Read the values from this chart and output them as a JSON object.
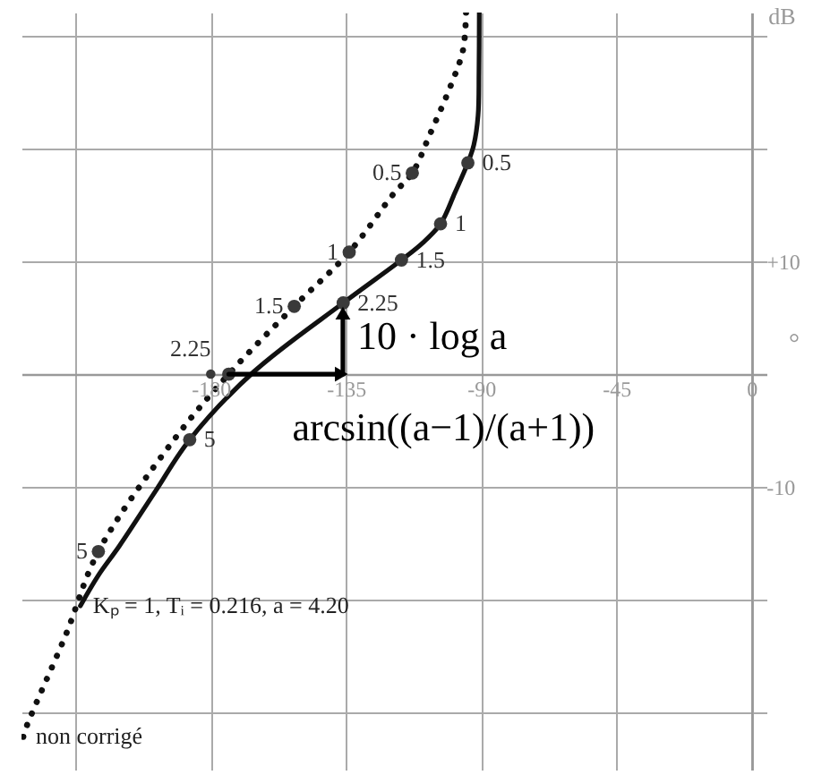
{
  "chart_data": {
    "type": "line",
    "xlabel": "°",
    "ylabel": "dB",
    "xlim": [
      -243,
      5
    ],
    "ylim": [
      -35,
      32
    ],
    "xticks": [
      {
        "value": -225,
        "label": null
      },
      -180,
      -135,
      -90,
      -45,
      0
    ],
    "yticks": [
      {
        "value": -30,
        "label": null
      },
      {
        "value": -20,
        "label": null
      },
      -10,
      {
        "value": 0,
        "label": null
      },
      {
        "value": 10,
        "label": "+10"
      },
      {
        "value": 20,
        "label": null
      },
      {
        "value": 30,
        "label": null
      }
    ],
    "grid": true,
    "series": [
      {
        "name": "Kₚ = 1, Tᵢ = 0.216, a = 4.20",
        "color": "#111111",
        "line_style": "solid",
        "x": [
          -90.6,
          -90.7,
          -91.0,
          -92.4,
          -94.4,
          -98.8,
          -103.5,
          -109.5,
          -116.5,
          -135.9,
          -165.7,
          -187.0,
          -198.5,
          -210.4,
          -217.4,
          -223.4
        ],
        "values": [
          32,
          26.8,
          22.9,
          20.3,
          18.7,
          16.0,
          13.3,
          11.6,
          10.1,
          6.3,
          0.2,
          -5.8,
          -10.4,
          -15.2,
          -17.8,
          -20.5
        ]
      },
      {
        "name": "non corrigé",
        "color": "#111111",
        "line_style": "dotted",
        "x": [
          -95.0,
          -96.0,
          -100.0,
          -106.9,
          -112.9,
          -119.0,
          -133.9,
          -152.2,
          -174.0,
          -192.5,
          -217.4,
          -228.3,
          -241.2,
          -242.4
        ],
        "values": [
          32,
          28.7,
          25.6,
          21.3,
          17.8,
          16.0,
          10.8,
          6.0,
          0,
          -5.9,
          -15.7,
          -23.1,
          -31.1,
          -32.1
        ]
      },
      {
        "type": "scatter",
        "color": "#3a3a3a",
        "x": [
          -94.4,
          -103.5,
          -116.5,
          -135.9,
          -187.0
        ],
        "values": [
          18.7,
          13.3,
          10.1,
          6.3,
          -5.8
        ]
      },
      {
        "type": "scatter",
        "color": "#3a3a3a",
        "x": [
          -112.9,
          -133.9,
          -152.2,
          -174.0,
          -217.4
        ],
        "values": [
          17.8,
          10.8,
          6.0,
          0,
          -15.7
        ]
      },
      {
        "type": "scatter",
        "color": "#3a3a3a",
        "x": [
          -180
        ],
        "values": [
          0
        ]
      },
      {
        "color": "#000000",
        "x": [
          -136,
          -136
        ],
        "values": [
          0,
          5.4
        ]
      },
      {
        "color": "#000000",
        "x": [
          -174,
          -136.5
        ],
        "values": [
          0,
          0
        ]
      }
    ],
    "annotations": [
      {
        "text": "0.5",
        "x": -94.4,
        "y": 18.7
      },
      {
        "text": "1",
        "x": -103.5,
        "y": 13.3
      },
      {
        "text": "1.5",
        "x": -116.5,
        "y": 10.1
      },
      {
        "text": "2.25",
        "x": -135.9,
        "y": 6.3
      },
      {
        "text": "5",
        "x": -187.0,
        "y": -5.8
      },
      {
        "text": "0.5",
        "x": -112.9,
        "y": 17.8
      },
      {
        "text": "1",
        "x": -133.9,
        "y": 10.8
      },
      {
        "text": "1.5",
        "x": -152.2,
        "y": 6.0
      },
      {
        "text": "2.25",
        "x": -174.0,
        "y": 0
      },
      {
        "text": "5",
        "x": -217.4,
        "y": -15.7
      },
      "10 · log a",
      "arcsin((a−1)/(a+1))"
    ]
  }
}
